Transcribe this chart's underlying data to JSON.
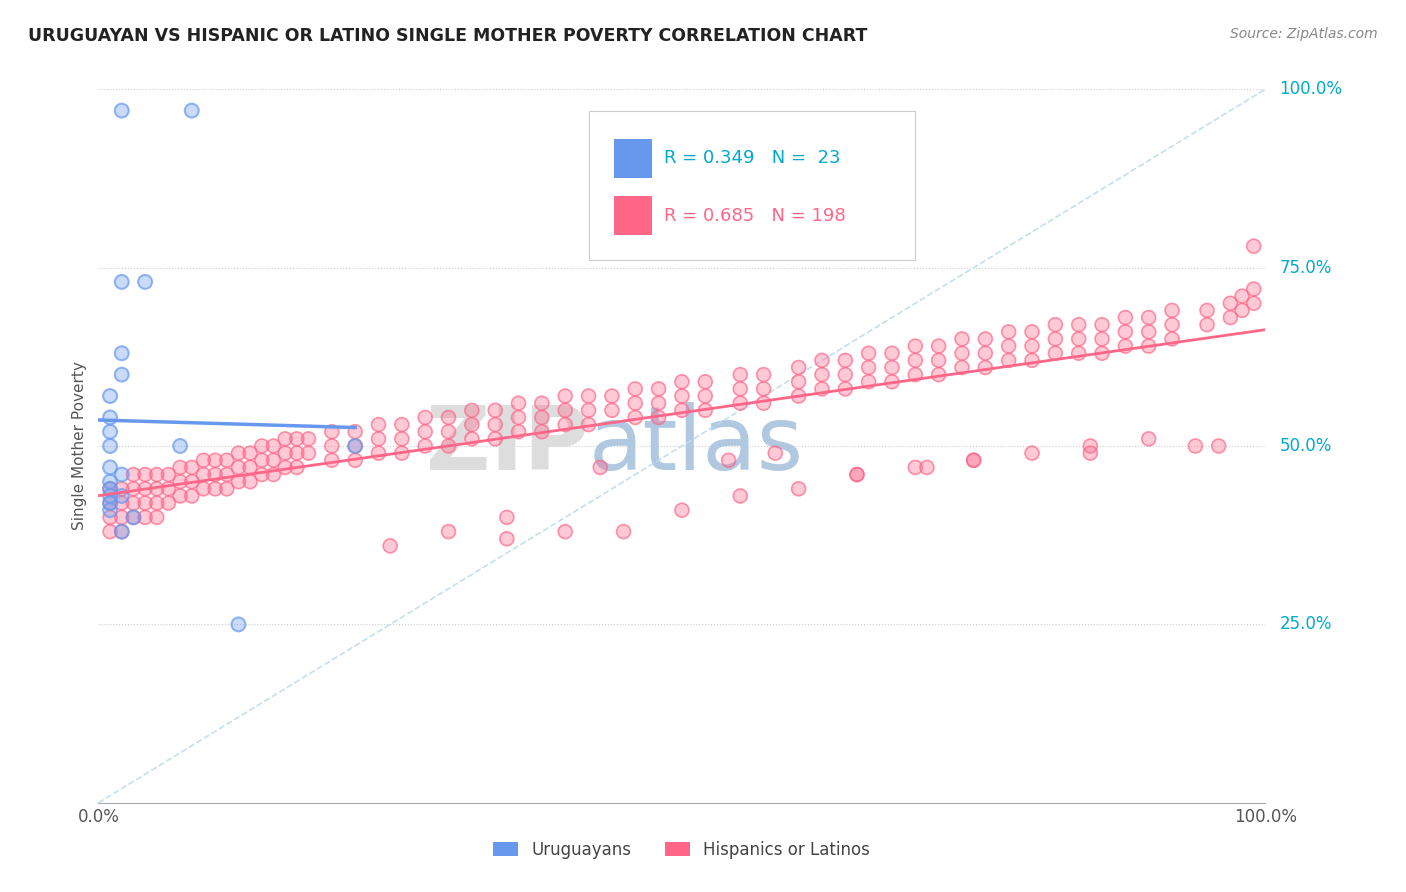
{
  "title": "URUGUAYAN VS HISPANIC OR LATINO SINGLE MOTHER POVERTY CORRELATION CHART",
  "source": "Source: ZipAtlas.com",
  "ylabel": "Single Mother Poverty",
  "ytick_labels": [
    "25.0%",
    "50.0%",
    "75.0%",
    "100.0%"
  ],
  "ytick_values": [
    0.25,
    0.5,
    0.75,
    1.0
  ],
  "legend_uruguayan": "Uruguayans",
  "legend_hispanic": "Hispanics or Latinos",
  "r_uruguayan": 0.349,
  "n_uruguayan": 23,
  "r_hispanic": 0.685,
  "n_hispanic": 198,
  "uruguayan_color": "#6699ee",
  "hispanic_color": "#ff6688",
  "background_color": "#ffffff",
  "watermark_zip": "ZIP",
  "watermark_atlas": "atlas",
  "uruguayan_scatter": [
    [
      0.02,
      0.97
    ],
    [
      0.08,
      0.97
    ],
    [
      0.02,
      0.73
    ],
    [
      0.04,
      0.73
    ],
    [
      0.02,
      0.63
    ],
    [
      0.02,
      0.6
    ],
    [
      0.01,
      0.57
    ],
    [
      0.01,
      0.54
    ],
    [
      0.01,
      0.52
    ],
    [
      0.01,
      0.5
    ],
    [
      0.01,
      0.47
    ],
    [
      0.02,
      0.46
    ],
    [
      0.01,
      0.45
    ],
    [
      0.01,
      0.44
    ],
    [
      0.01,
      0.43
    ],
    [
      0.02,
      0.43
    ],
    [
      0.01,
      0.42
    ],
    [
      0.01,
      0.41
    ],
    [
      0.03,
      0.4
    ],
    [
      0.02,
      0.38
    ],
    [
      0.07,
      0.5
    ],
    [
      0.12,
      0.25
    ],
    [
      0.22,
      0.5
    ]
  ],
  "hispanic_scatter": [
    [
      0.01,
      0.44
    ],
    [
      0.01,
      0.42
    ],
    [
      0.01,
      0.4
    ],
    [
      0.01,
      0.38
    ],
    [
      0.02,
      0.44
    ],
    [
      0.02,
      0.42
    ],
    [
      0.02,
      0.4
    ],
    [
      0.02,
      0.38
    ],
    [
      0.03,
      0.46
    ],
    [
      0.03,
      0.44
    ],
    [
      0.03,
      0.42
    ],
    [
      0.03,
      0.4
    ],
    [
      0.04,
      0.46
    ],
    [
      0.04,
      0.44
    ],
    [
      0.04,
      0.42
    ],
    [
      0.04,
      0.4
    ],
    [
      0.05,
      0.46
    ],
    [
      0.05,
      0.44
    ],
    [
      0.05,
      0.42
    ],
    [
      0.05,
      0.4
    ],
    [
      0.06,
      0.46
    ],
    [
      0.06,
      0.44
    ],
    [
      0.06,
      0.42
    ],
    [
      0.07,
      0.47
    ],
    [
      0.07,
      0.45
    ],
    [
      0.07,
      0.43
    ],
    [
      0.08,
      0.47
    ],
    [
      0.08,
      0.45
    ],
    [
      0.08,
      0.43
    ],
    [
      0.09,
      0.48
    ],
    [
      0.09,
      0.46
    ],
    [
      0.09,
      0.44
    ],
    [
      0.1,
      0.48
    ],
    [
      0.1,
      0.46
    ],
    [
      0.1,
      0.44
    ],
    [
      0.11,
      0.48
    ],
    [
      0.11,
      0.46
    ],
    [
      0.11,
      0.44
    ],
    [
      0.12,
      0.49
    ],
    [
      0.12,
      0.47
    ],
    [
      0.12,
      0.45
    ],
    [
      0.13,
      0.49
    ],
    [
      0.13,
      0.47
    ],
    [
      0.13,
      0.45
    ],
    [
      0.14,
      0.5
    ],
    [
      0.14,
      0.48
    ],
    [
      0.14,
      0.46
    ],
    [
      0.15,
      0.5
    ],
    [
      0.15,
      0.48
    ],
    [
      0.15,
      0.46
    ],
    [
      0.16,
      0.51
    ],
    [
      0.16,
      0.49
    ],
    [
      0.16,
      0.47
    ],
    [
      0.17,
      0.51
    ],
    [
      0.17,
      0.49
    ],
    [
      0.17,
      0.47
    ],
    [
      0.18,
      0.51
    ],
    [
      0.18,
      0.49
    ],
    [
      0.2,
      0.52
    ],
    [
      0.2,
      0.5
    ],
    [
      0.2,
      0.48
    ],
    [
      0.22,
      0.52
    ],
    [
      0.22,
      0.5
    ],
    [
      0.22,
      0.48
    ],
    [
      0.24,
      0.53
    ],
    [
      0.24,
      0.51
    ],
    [
      0.24,
      0.49
    ],
    [
      0.25,
      0.36
    ],
    [
      0.26,
      0.53
    ],
    [
      0.26,
      0.51
    ],
    [
      0.26,
      0.49
    ],
    [
      0.28,
      0.54
    ],
    [
      0.28,
      0.52
    ],
    [
      0.28,
      0.5
    ],
    [
      0.3,
      0.54
    ],
    [
      0.3,
      0.52
    ],
    [
      0.3,
      0.5
    ],
    [
      0.32,
      0.55
    ],
    [
      0.32,
      0.53
    ],
    [
      0.32,
      0.51
    ],
    [
      0.34,
      0.55
    ],
    [
      0.34,
      0.53
    ],
    [
      0.34,
      0.51
    ],
    [
      0.35,
      0.37
    ],
    [
      0.36,
      0.56
    ],
    [
      0.36,
      0.54
    ],
    [
      0.36,
      0.52
    ],
    [
      0.38,
      0.56
    ],
    [
      0.38,
      0.54
    ],
    [
      0.38,
      0.52
    ],
    [
      0.4,
      0.57
    ],
    [
      0.4,
      0.55
    ],
    [
      0.4,
      0.53
    ],
    [
      0.42,
      0.57
    ],
    [
      0.42,
      0.55
    ],
    [
      0.42,
      0.53
    ],
    [
      0.43,
      0.47
    ],
    [
      0.44,
      0.57
    ],
    [
      0.44,
      0.55
    ],
    [
      0.45,
      0.38
    ],
    [
      0.46,
      0.58
    ],
    [
      0.46,
      0.56
    ],
    [
      0.46,
      0.54
    ],
    [
      0.48,
      0.58
    ],
    [
      0.48,
      0.56
    ],
    [
      0.48,
      0.54
    ],
    [
      0.5,
      0.59
    ],
    [
      0.5,
      0.57
    ],
    [
      0.5,
      0.55
    ],
    [
      0.52,
      0.59
    ],
    [
      0.52,
      0.57
    ],
    [
      0.52,
      0.55
    ],
    [
      0.54,
      0.48
    ],
    [
      0.55,
      0.6
    ],
    [
      0.55,
      0.58
    ],
    [
      0.55,
      0.56
    ],
    [
      0.57,
      0.6
    ],
    [
      0.57,
      0.58
    ],
    [
      0.57,
      0.56
    ],
    [
      0.58,
      0.49
    ],
    [
      0.6,
      0.61
    ],
    [
      0.6,
      0.59
    ],
    [
      0.6,
      0.57
    ],
    [
      0.62,
      0.62
    ],
    [
      0.62,
      0.6
    ],
    [
      0.62,
      0.58
    ],
    [
      0.64,
      0.62
    ],
    [
      0.64,
      0.6
    ],
    [
      0.64,
      0.58
    ],
    [
      0.65,
      0.46
    ],
    [
      0.66,
      0.63
    ],
    [
      0.66,
      0.61
    ],
    [
      0.66,
      0.59
    ],
    [
      0.68,
      0.63
    ],
    [
      0.68,
      0.61
    ],
    [
      0.68,
      0.59
    ],
    [
      0.7,
      0.64
    ],
    [
      0.7,
      0.62
    ],
    [
      0.7,
      0.6
    ],
    [
      0.71,
      0.47
    ],
    [
      0.72,
      0.64
    ],
    [
      0.72,
      0.62
    ],
    [
      0.72,
      0.6
    ],
    [
      0.74,
      0.65
    ],
    [
      0.74,
      0.63
    ],
    [
      0.74,
      0.61
    ],
    [
      0.75,
      0.48
    ],
    [
      0.76,
      0.65
    ],
    [
      0.76,
      0.63
    ],
    [
      0.76,
      0.61
    ],
    [
      0.78,
      0.66
    ],
    [
      0.78,
      0.64
    ],
    [
      0.78,
      0.62
    ],
    [
      0.8,
      0.66
    ],
    [
      0.8,
      0.64
    ],
    [
      0.8,
      0.62
    ],
    [
      0.82,
      0.67
    ],
    [
      0.82,
      0.65
    ],
    [
      0.82,
      0.63
    ],
    [
      0.84,
      0.67
    ],
    [
      0.84,
      0.65
    ],
    [
      0.84,
      0.63
    ],
    [
      0.85,
      0.49
    ],
    [
      0.86,
      0.67
    ],
    [
      0.86,
      0.65
    ],
    [
      0.86,
      0.63
    ],
    [
      0.88,
      0.68
    ],
    [
      0.88,
      0.66
    ],
    [
      0.88,
      0.64
    ],
    [
      0.9,
      0.68
    ],
    [
      0.9,
      0.66
    ],
    [
      0.9,
      0.64
    ],
    [
      0.92,
      0.69
    ],
    [
      0.92,
      0.67
    ],
    [
      0.92,
      0.65
    ],
    [
      0.94,
      0.5
    ],
    [
      0.95,
      0.69
    ],
    [
      0.95,
      0.67
    ],
    [
      0.96,
      0.5
    ],
    [
      0.97,
      0.7
    ],
    [
      0.97,
      0.68
    ],
    [
      0.98,
      0.71
    ],
    [
      0.98,
      0.69
    ],
    [
      0.99,
      0.78
    ],
    [
      0.99,
      0.72
    ],
    [
      0.99,
      0.7
    ],
    [
      0.3,
      0.38
    ],
    [
      0.35,
      0.4
    ],
    [
      0.4,
      0.38
    ],
    [
      0.5,
      0.41
    ],
    [
      0.55,
      0.43
    ],
    [
      0.6,
      0.44
    ],
    [
      0.65,
      0.46
    ],
    [
      0.7,
      0.47
    ],
    [
      0.75,
      0.48
    ],
    [
      0.8,
      0.49
    ],
    [
      0.85,
      0.5
    ],
    [
      0.9,
      0.51
    ]
  ],
  "ylim": [
    0.0,
    1.0
  ],
  "xlim": [
    0.0,
    1.0
  ]
}
